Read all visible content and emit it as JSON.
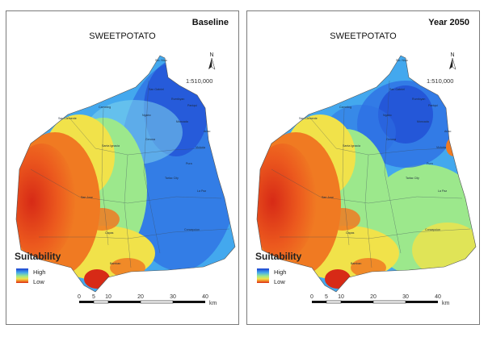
{
  "panels": [
    {
      "period": "Baseline",
      "crop": "SWEETPOTATO",
      "scale_text": "1:510,000",
      "north_label": "N",
      "legend": {
        "title": "Suitability",
        "high": "High",
        "low": "Low"
      },
      "scalebar": {
        "ticks": [
          "0",
          "5",
          "10",
          "20",
          "30",
          "40"
        ],
        "unit": "km"
      },
      "places": [
        "Sto. Nino",
        "San Gabriel",
        "Rumfoyan",
        "Ngabo",
        "San Clemente",
        "Cameling",
        "Moncada",
        "Santa Ignacia",
        "Gerona",
        "Victoria",
        "San Jose",
        "Tarlac City",
        "La Paz",
        "Capas",
        "Concepcion",
        "Bamban",
        "Pura",
        "Anao",
        "Paniqui"
      ]
    },
    {
      "period": "Year 2050",
      "crop": "SWEETPOTATO",
      "scale_text": "1:510,000",
      "north_label": "N",
      "legend": {
        "title": "Suitability",
        "high": "High",
        "low": "Low"
      },
      "scalebar": {
        "ticks": [
          "0",
          "5",
          "10",
          "20",
          "30",
          "40"
        ],
        "unit": "km"
      },
      "places": [
        "Sto. Nino",
        "San Gabriel",
        "Rumfoyan",
        "Ngabo",
        "San Clemente",
        "Cameling",
        "Moncada",
        "Santa Ignacia",
        "Gerona",
        "Victoria",
        "San Jose",
        "Tarlac City",
        "La Paz",
        "Capas",
        "Concepcion",
        "Bamban",
        "Pura",
        "Anao",
        "Paniqui"
      ]
    }
  ],
  "colors": {
    "high": "#1b3fcf",
    "mid_high": "#43a8ee",
    "medium": "#9ce88c",
    "mid_low": "#f1e24a",
    "low_orange": "#f07a22",
    "low": "#d72a16"
  }
}
